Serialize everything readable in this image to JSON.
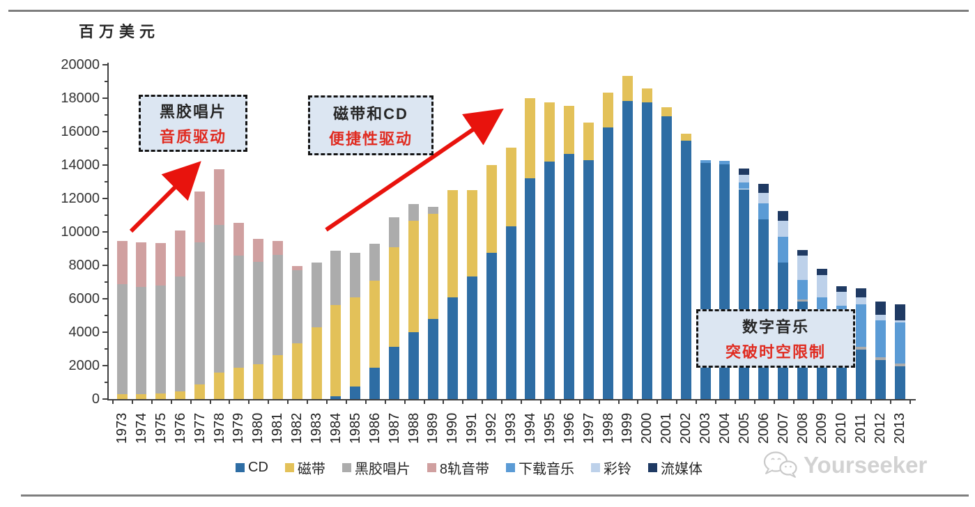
{
  "page": {
    "unit_label": "百万美元",
    "watermark_text": "Yourseeker"
  },
  "annotations": [
    {
      "line1": "黑胶唱片",
      "line2": "音质驱动"
    },
    {
      "line1": "磁带和CD",
      "line2": "便捷性驱动"
    },
    {
      "line1": "数字音乐",
      "line2": "突破时空限制"
    }
  ],
  "colors": {
    "cd": "#2e6da4",
    "tape": "#e3c159",
    "vinyl": "#acacac",
    "eight_track": "#d0a0a0",
    "download": "#5b9bd5",
    "ringtone": "#bdd1ea",
    "streaming": "#1f3a63",
    "arrow_red": "#e8130d",
    "annotation_fill": "#dce6f2"
  },
  "chart_data": {
    "type": "bar",
    "stacked": true,
    "title": "",
    "xlabel": "",
    "ylabel": "百万美元",
    "ylim": [
      0,
      20000
    ],
    "ytick_step": 2000,
    "ytick_minor_step": 1000,
    "grid": false,
    "legend_position": "bottom",
    "categories": [
      "1973",
      "1974",
      "1975",
      "1976",
      "1977",
      "1978",
      "1979",
      "1980",
      "1981",
      "1982",
      "1983",
      "1984",
      "1985",
      "1986",
      "1987",
      "1988",
      "1989",
      "1990",
      "1991",
      "1992",
      "1993",
      "1994",
      "1995",
      "1996",
      "1997",
      "1998",
      "1999",
      "2000",
      "2001",
      "2002",
      "2003",
      "2004",
      "2005",
      "2006",
      "2007",
      "2008",
      "2009",
      "2010",
      "2011",
      "2012",
      "2013"
    ],
    "series": [
      {
        "name": "CD",
        "color": "#2e6da4",
        "values": [
          0,
          0,
          0,
          0,
          0,
          0,
          0,
          0,
          0,
          0,
          0,
          150,
          750,
          1875,
          3125,
          4000,
          4790,
          6080,
          7340,
          8750,
          10340,
          13200,
          14200,
          14660,
          14290,
          16250,
          17830,
          17750,
          16900,
          15460,
          14130,
          14050,
          12560,
          10750,
          8170,
          5830,
          4290,
          3990,
          2960,
          2330,
          1960
        ]
      },
      {
        "name": "磁带",
        "color": "#e3c159",
        "values": [
          290,
          290,
          330,
          460,
          875,
          1580,
          1875,
          2080,
          2625,
          3330,
          4290,
          5475,
          5330,
          5205,
          5955,
          6670,
          6290,
          6420,
          5160,
          5250,
          4700,
          4800,
          3560,
          2890,
          2250,
          2100,
          1500,
          840,
          550,
          400,
          0,
          0,
          0,
          0,
          0,
          0,
          0,
          0,
          0,
          0,
          0
        ]
      },
      {
        "name": "黑胶唱片",
        "color": "#acacac",
        "values": [
          6590,
          6420,
          6460,
          6880,
          8500,
          8840,
          6705,
          6130,
          6000,
          4380,
          3880,
          3250,
          2670,
          2210,
          1800,
          1000,
          420,
          0,
          0,
          0,
          0,
          0,
          0,
          0,
          0,
          0,
          0,
          0,
          0,
          0,
          0,
          0,
          0,
          0,
          0,
          120,
          100,
          100,
          170,
          170,
          170
        ]
      },
      {
        "name": "8轨音带",
        "color": "#d0a0a0",
        "values": [
          2580,
          2665,
          2540,
          2740,
          3045,
          3330,
          1960,
          1370,
          835,
          250,
          0,
          0,
          0,
          0,
          0,
          0,
          0,
          0,
          0,
          0,
          0,
          0,
          0,
          0,
          0,
          0,
          0,
          0,
          0,
          0,
          0,
          0,
          0,
          0,
          0,
          0,
          0,
          0,
          0,
          0,
          0
        ]
      },
      {
        "name": "下载音乐",
        "color": "#5b9bd5",
        "values": [
          0,
          0,
          0,
          0,
          0,
          0,
          0,
          0,
          0,
          0,
          0,
          0,
          0,
          0,
          0,
          0,
          0,
          0,
          0,
          0,
          0,
          0,
          0,
          0,
          0,
          0,
          0,
          0,
          0,
          0,
          160,
          210,
          380,
          960,
          1540,
          1170,
          1700,
          1500,
          2540,
          2210,
          2460
        ]
      },
      {
        "name": "彩铃",
        "color": "#bdd1ea",
        "values": [
          0,
          0,
          0,
          0,
          0,
          0,
          0,
          0,
          0,
          0,
          0,
          0,
          0,
          0,
          0,
          0,
          0,
          0,
          0,
          0,
          0,
          0,
          0,
          0,
          0,
          0,
          0,
          0,
          0,
          0,
          0,
          0,
          460,
          630,
          960,
          1460,
          1330,
          830,
          420,
          330,
          125
        ]
      },
      {
        "name": "流媒体",
        "color": "#1f3a63",
        "values": [
          0,
          0,
          0,
          0,
          0,
          0,
          0,
          0,
          0,
          0,
          0,
          0,
          0,
          0,
          0,
          0,
          0,
          0,
          0,
          0,
          0,
          0,
          0,
          0,
          0,
          0,
          0,
          0,
          0,
          0,
          0,
          0,
          380,
          540,
          580,
          330,
          370,
          330,
          540,
          790,
          960
        ]
      }
    ]
  }
}
